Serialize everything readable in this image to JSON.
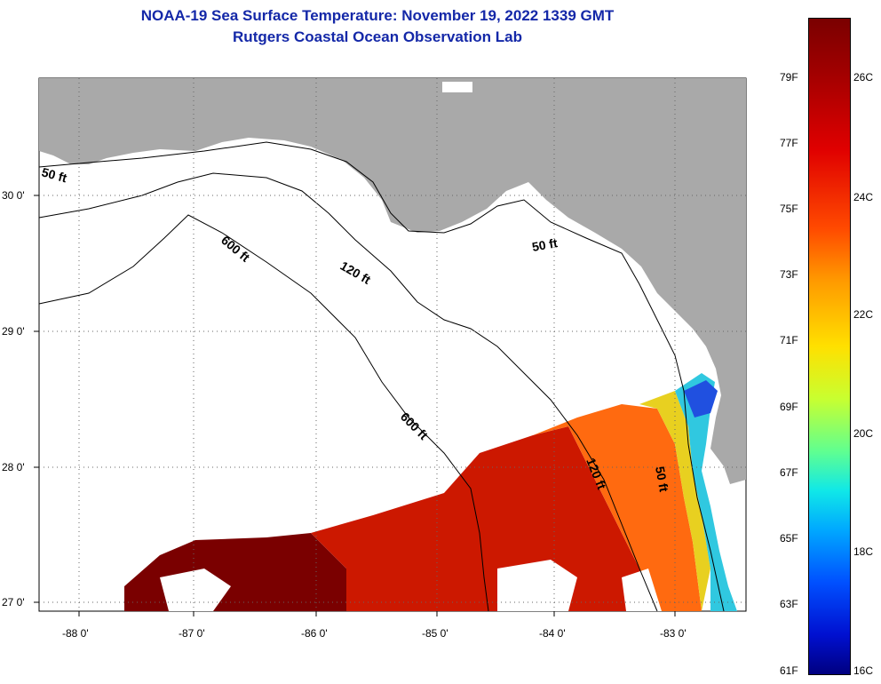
{
  "header": {
    "title": "NOAA-19 Sea Surface Temperature:  November 19, 2022 1339 GMT",
    "subtitle": "Rutgers Coastal Ocean Observation Lab"
  },
  "map": {
    "region": "Gulf of Mexico - Florida Big Bend",
    "lat_ticks": [
      "30 0'",
      "29 0'",
      "28 0'",
      "27 0'"
    ],
    "lon_ticks": [
      "-88 0'",
      "-87 0'",
      "-86 0'",
      "-85 0'",
      "-84 0'",
      "-83 0'"
    ],
    "depth_labels": [
      "50 ft",
      "600 ft",
      "120 ft",
      "50 ft",
      "600 ft",
      "120 ft",
      "50 ft"
    ],
    "colors": {
      "land": "#a9a9a9",
      "water_nodata": "#ffffff",
      "contour": "#000000"
    }
  },
  "colorbar": {
    "fahrenheit": [
      "79F",
      "77F",
      "75F",
      "73F",
      "71F",
      "69F",
      "67F",
      "65F",
      "63F",
      "61F"
    ],
    "celsius": [
      "26C",
      "24C",
      "22C",
      "20C",
      "18C",
      "16C"
    ]
  }
}
